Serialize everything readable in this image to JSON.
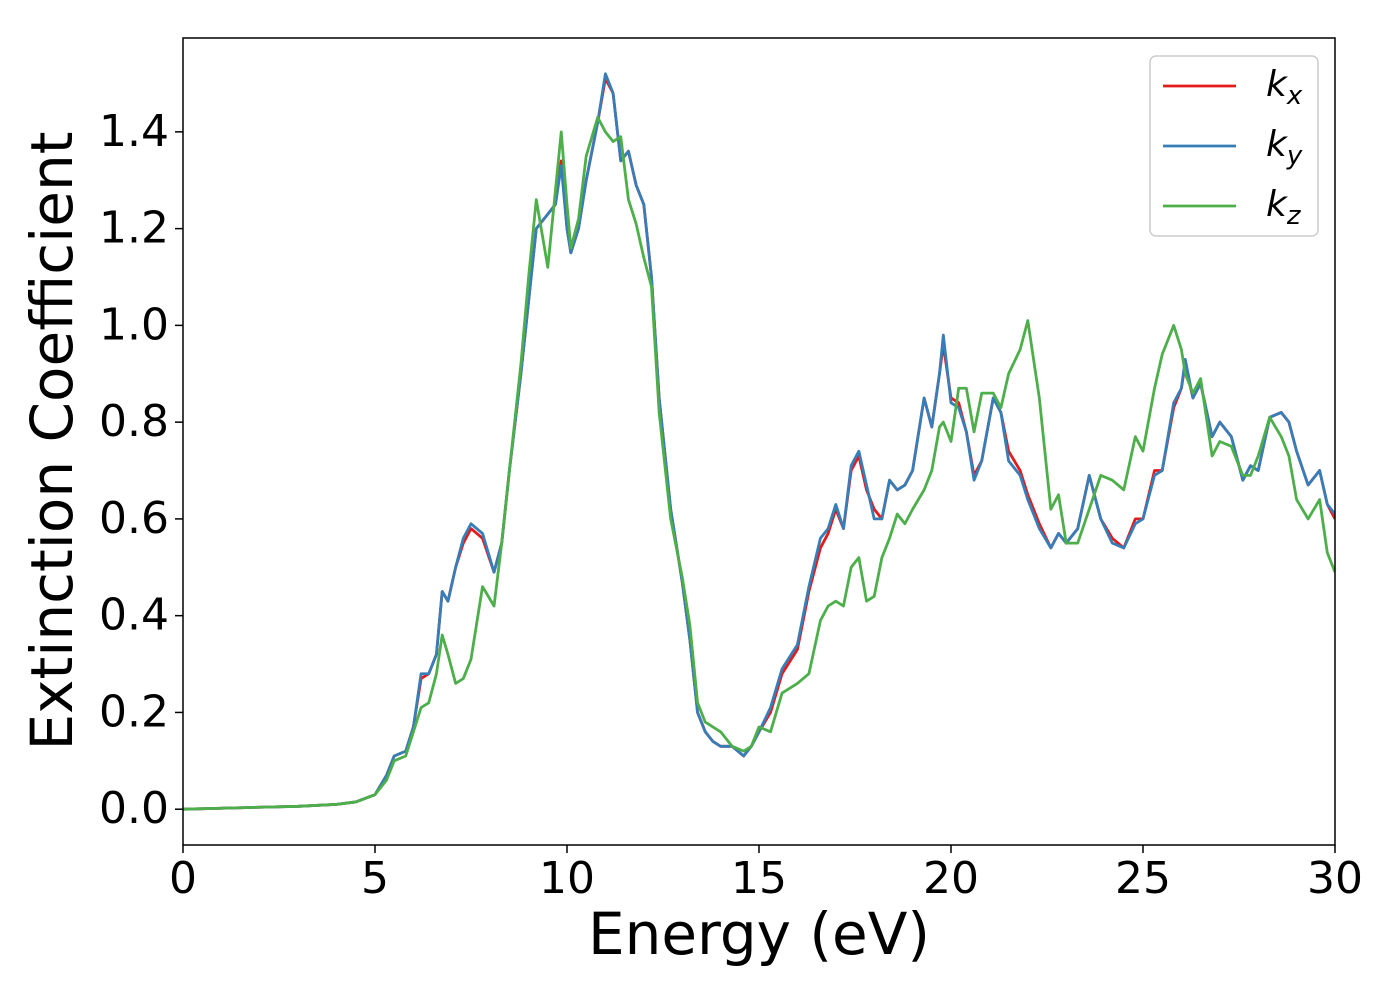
{
  "chart_data": {
    "type": "line",
    "xlabel": "Energy (eV)",
    "ylabel": "Extinction Coefficient",
    "x": [
      0,
      1,
      2,
      3,
      4,
      4.5,
      5,
      5.3,
      5.5,
      5.8,
      6.0,
      6.2,
      6.4,
      6.6,
      6.75,
      6.9,
      7.1,
      7.3,
      7.5,
      7.8,
      8.1,
      8.3,
      8.5,
      8.8,
      9.0,
      9.2,
      9.5,
      9.7,
      9.85,
      10.0,
      10.1,
      10.3,
      10.5,
      10.8,
      11.0,
      11.2,
      11.4,
      11.6,
      11.8,
      12.0,
      12.2,
      12.4,
      12.7,
      13.0,
      13.2,
      13.4,
      13.6,
      13.8,
      14.0,
      14.3,
      14.6,
      14.8,
      15.0,
      15.3,
      15.6,
      16.0,
      16.3,
      16.6,
      16.8,
      17.0,
      17.2,
      17.4,
      17.6,
      17.8,
      18.0,
      18.2,
      18.4,
      18.6,
      18.8,
      19.0,
      19.3,
      19.5,
      19.7,
      19.8,
      20.0,
      20.2,
      20.4,
      20.6,
      20.8,
      21.1,
      21.3,
      21.5,
      21.8,
      22.0,
      22.3,
      22.6,
      22.8,
      23.0,
      23.3,
      23.6,
      23.9,
      24.2,
      24.5,
      24.8,
      25.0,
      25.3,
      25.5,
      25.8,
      26.0,
      26.1,
      26.3,
      26.5,
      26.8,
      27.0,
      27.3,
      27.6,
      27.8,
      28.0,
      28.3,
      28.6,
      28.8,
      29.0,
      29.3,
      29.6,
      29.8,
      30.0
    ],
    "series": [
      {
        "name": "kx",
        "color": "#e41a1c",
        "values": [
          0,
          0.002,
          0.004,
          0.006,
          0.01,
          0.015,
          0.03,
          0.07,
          0.11,
          0.12,
          0.17,
          0.27,
          0.28,
          0.32,
          0.45,
          0.43,
          0.5,
          0.55,
          0.58,
          0.56,
          0.49,
          0.55,
          0.7,
          0.9,
          1.05,
          1.2,
          1.23,
          1.25,
          1.34,
          1.2,
          1.15,
          1.2,
          1.3,
          1.42,
          1.51,
          1.48,
          1.34,
          1.36,
          1.29,
          1.25,
          1.1,
          0.85,
          0.62,
          0.47,
          0.35,
          0.2,
          0.16,
          0.14,
          0.13,
          0.13,
          0.11,
          0.13,
          0.16,
          0.2,
          0.28,
          0.33,
          0.45,
          0.54,
          0.57,
          0.62,
          0.58,
          0.7,
          0.73,
          0.66,
          0.62,
          0.6,
          0.68,
          0.66,
          0.67,
          0.7,
          0.85,
          0.79,
          0.9,
          0.96,
          0.85,
          0.84,
          0.78,
          0.69,
          0.72,
          0.85,
          0.82,
          0.74,
          0.7,
          0.65,
          0.59,
          0.54,
          0.57,
          0.55,
          0.58,
          0.69,
          0.6,
          0.56,
          0.54,
          0.6,
          0.6,
          0.7,
          0.7,
          0.83,
          0.87,
          0.92,
          0.85,
          0.88,
          0.77,
          0.8,
          0.77,
          0.68,
          0.71,
          0.7,
          0.81,
          0.82,
          0.8,
          0.74,
          0.67,
          0.7,
          0.63,
          0.6
        ]
      },
      {
        "name": "ky",
        "color": "#377eb8",
        "values": [
          0,
          0.002,
          0.004,
          0.006,
          0.01,
          0.015,
          0.03,
          0.07,
          0.11,
          0.12,
          0.17,
          0.28,
          0.28,
          0.32,
          0.45,
          0.43,
          0.5,
          0.56,
          0.59,
          0.57,
          0.49,
          0.55,
          0.7,
          0.9,
          1.05,
          1.2,
          1.23,
          1.25,
          1.33,
          1.2,
          1.15,
          1.2,
          1.3,
          1.42,
          1.52,
          1.48,
          1.34,
          1.36,
          1.29,
          1.25,
          1.1,
          0.85,
          0.62,
          0.47,
          0.35,
          0.2,
          0.16,
          0.14,
          0.13,
          0.13,
          0.11,
          0.13,
          0.16,
          0.21,
          0.29,
          0.34,
          0.46,
          0.56,
          0.58,
          0.63,
          0.58,
          0.71,
          0.74,
          0.67,
          0.6,
          0.6,
          0.68,
          0.66,
          0.67,
          0.7,
          0.85,
          0.79,
          0.9,
          0.98,
          0.84,
          0.83,
          0.78,
          0.68,
          0.72,
          0.85,
          0.82,
          0.72,
          0.69,
          0.64,
          0.58,
          0.54,
          0.57,
          0.55,
          0.58,
          0.69,
          0.6,
          0.55,
          0.54,
          0.59,
          0.6,
          0.69,
          0.7,
          0.84,
          0.87,
          0.93,
          0.85,
          0.88,
          0.77,
          0.8,
          0.77,
          0.68,
          0.71,
          0.7,
          0.81,
          0.82,
          0.8,
          0.74,
          0.67,
          0.7,
          0.63,
          0.61
        ]
      },
      {
        "name": "kz",
        "color": "#4daf4a",
        "values": [
          0,
          0.002,
          0.004,
          0.006,
          0.01,
          0.015,
          0.03,
          0.06,
          0.1,
          0.11,
          0.16,
          0.21,
          0.22,
          0.28,
          0.36,
          0.32,
          0.26,
          0.27,
          0.31,
          0.46,
          0.42,
          0.55,
          0.7,
          0.92,
          1.1,
          1.26,
          1.12,
          1.28,
          1.4,
          1.25,
          1.16,
          1.22,
          1.35,
          1.43,
          1.4,
          1.38,
          1.39,
          1.26,
          1.21,
          1.14,
          1.08,
          0.82,
          0.6,
          0.48,
          0.38,
          0.22,
          0.18,
          0.17,
          0.16,
          0.13,
          0.12,
          0.13,
          0.17,
          0.16,
          0.24,
          0.26,
          0.28,
          0.39,
          0.42,
          0.43,
          0.42,
          0.5,
          0.52,
          0.43,
          0.44,
          0.52,
          0.56,
          0.61,
          0.59,
          0.62,
          0.66,
          0.7,
          0.79,
          0.8,
          0.76,
          0.87,
          0.87,
          0.78,
          0.86,
          0.86,
          0.83,
          0.9,
          0.95,
          1.01,
          0.85,
          0.62,
          0.65,
          0.55,
          0.55,
          0.62,
          0.69,
          0.68,
          0.66,
          0.77,
          0.74,
          0.87,
          0.94,
          1.0,
          0.95,
          0.9,
          0.86,
          0.89,
          0.73,
          0.76,
          0.75,
          0.69,
          0.69,
          0.73,
          0.81,
          0.77,
          0.73,
          0.64,
          0.6,
          0.64,
          0.53,
          0.49
        ]
      }
    ],
    "xlim": [
      0,
      30
    ],
    "xticks": [
      0,
      5,
      10,
      15,
      20,
      25,
      30
    ],
    "ylim": [
      -0.074,
      1.594
    ],
    "yticks": [
      {
        "value": 0,
        "label": "0.0"
      },
      0.2,
      0.4,
      0.6,
      0.8,
      {
        "value": 1,
        "label": "1.0"
      },
      1.2,
      1.4
    ],
    "grid": false,
    "legend": "upper right"
  }
}
